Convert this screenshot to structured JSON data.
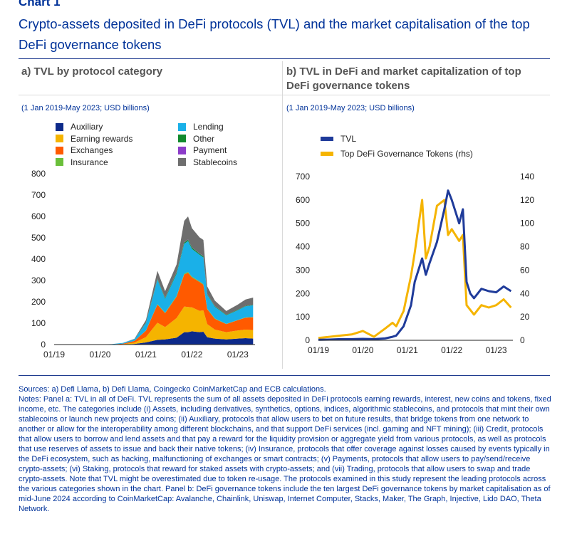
{
  "header": {
    "chart_number": "Chart 1",
    "title": "Crypto-assets deposited in DeFi protocols (TVL) and the market capitalisation of the top DeFi governance tokens"
  },
  "colors": {
    "title_blue": "#003299",
    "auxiliary": "#0d2a8a",
    "earning_rewards": "#f5b400",
    "exchanges": "#ff5a00",
    "insurance": "#6abf3a",
    "lending": "#1ab0e8",
    "other": "#118a2d",
    "payment": "#8c3cc9",
    "stablecoins": "#6e6e6e",
    "tvl_line": "#1f3b9a",
    "gov_tokens_line": "#f5b400"
  },
  "chart_data": [
    {
      "panel_title": "a) TVL by protocol category",
      "subtitle": "(1 Jan 2019-May 2023; USD billions)",
      "type": "area",
      "stacked": true,
      "x": [
        "01/19",
        "04/19",
        "07/19",
        "10/19",
        "01/20",
        "04/20",
        "07/20",
        "10/20",
        "01/21",
        "04/21",
        "06/21",
        "09/21",
        "11/21",
        "12/21",
        "01/22",
        "03/22",
        "04/22",
        "05/22",
        "07/22",
        "10/22",
        "01/23",
        "03/23",
        "05/23"
      ],
      "x_ticks": [
        "01/19",
        "01/20",
        "01/21",
        "01/22",
        "01/23"
      ],
      "ylim": [
        0,
        800
      ],
      "y_ticks": [
        "0",
        "100",
        "200",
        "300",
        "400",
        "500",
        "600",
        "700",
        "800"
      ],
      "series": [
        {
          "name": "Auxiliary",
          "color": "#0d2a8a",
          "values": [
            0,
            0,
            0,
            0,
            0,
            0,
            0,
            3,
            10,
            22,
            24,
            32,
            58,
            58,
            62,
            58,
            60,
            34,
            28,
            24,
            28,
            30,
            28
          ]
        },
        {
          "name": "Earning rewards",
          "color": "#f5b400",
          "values": [
            0,
            0,
            0,
            0,
            0,
            0,
            2,
            6,
            25,
            80,
            58,
            92,
            120,
            118,
            112,
            100,
            100,
            62,
            42,
            34,
            38,
            40,
            40
          ]
        },
        {
          "name": "Exchanges",
          "color": "#ff5a00",
          "values": [
            0,
            0,
            0,
            0,
            0,
            1,
            2,
            8,
            30,
            85,
            65,
            100,
            150,
            160,
            140,
            135,
            120,
            70,
            50,
            38,
            48,
            56,
            60
          ]
        },
        {
          "name": "Insurance",
          "color": "#6abf3a",
          "values": [
            0,
            0,
            0,
            0,
            0,
            0,
            0,
            0,
            1,
            2,
            2,
            3,
            4,
            4,
            4,
            3,
            3,
            2,
            2,
            1,
            1,
            1,
            1
          ]
        },
        {
          "name": "Lending",
          "color": "#1ab0e8",
          "values": [
            0,
            0,
            0,
            0,
            1,
            1,
            4,
            8,
            35,
            115,
            65,
            105,
            140,
            145,
            130,
            125,
            125,
            65,
            55,
            40,
            46,
            52,
            55
          ]
        },
        {
          "name": "Other",
          "color": "#118a2d",
          "values": [
            0,
            0,
            0,
            0,
            0,
            0,
            0,
            0,
            2,
            4,
            4,
            6,
            6,
            6,
            6,
            5,
            5,
            3,
            3,
            2,
            2,
            2,
            2
          ]
        },
        {
          "name": "Payment",
          "color": "#8c3cc9",
          "values": [
            0,
            0,
            0,
            0,
            0,
            0,
            0,
            0,
            0,
            1,
            1,
            1,
            1,
            1,
            1,
            1,
            1,
            1,
            1,
            0,
            0,
            0,
            0
          ]
        },
        {
          "name": "Stablecoins",
          "color": "#6e6e6e",
          "values": [
            0,
            0,
            0,
            0,
            0,
            0,
            0,
            2,
            12,
            36,
            31,
            36,
            100,
            108,
            90,
            75,
            76,
            35,
            25,
            18,
            24,
            30,
            34
          ]
        }
      ]
    },
    {
      "panel_title": "b) TVL in DeFi and market capitalization of top DeFi governance tokens",
      "subtitle": "(1 Jan 2019-May 2023; USD billions)",
      "type": "line",
      "x": [
        "01/19",
        "04/19",
        "07/19",
        "10/19",
        "01/20",
        "04/20",
        "07/20",
        "09/20",
        "10/20",
        "12/20",
        "02/21",
        "03/21",
        "05/21",
        "06/21",
        "07/21",
        "09/21",
        "11/21",
        "12/21",
        "01/22",
        "03/22",
        "04/22",
        "05/22",
        "06/22",
        "07/22",
        "09/22",
        "11/22",
        "01/23",
        "03/23",
        "05/23"
      ],
      "x_ticks": [
        "01/19",
        "01/20",
        "01/21",
        "01/22",
        "01/23"
      ],
      "ylim_left": [
        0,
        700
      ],
      "y_ticks_left": [
        "0",
        "100",
        "200",
        "300",
        "400",
        "500",
        "600",
        "700"
      ],
      "ylim_right": [
        0,
        140
      ],
      "y_ticks_right": [
        "0",
        "20",
        "40",
        "60",
        "80",
        "100",
        "120",
        "140"
      ],
      "series": [
        {
          "name": "TVL",
          "axis": "left",
          "color": "#1f3b9a",
          "values": [
            2,
            3,
            5,
            5,
            6,
            5,
            8,
            15,
            20,
            60,
            150,
            250,
            350,
            280,
            330,
            420,
            560,
            640,
            600,
            500,
            560,
            250,
            200,
            180,
            220,
            210,
            205,
            230,
            210
          ]
        },
        {
          "name": "Top DeFi Governance Tokens (rhs)",
          "axis": "right",
          "color": "#f5b400",
          "values": [
            2,
            3,
            4,
            5,
            8,
            3,
            10,
            15,
            12,
            25,
            55,
            75,
            120,
            70,
            80,
            115,
            120,
            90,
            95,
            85,
            90,
            30,
            26,
            22,
            30,
            28,
            30,
            35,
            28
          ]
        }
      ]
    }
  ],
  "legend_a": {
    "items": [
      "Auxiliary",
      "Earning rewards",
      "Exchanges",
      "Insurance",
      "Lending",
      "Other",
      "Payment",
      "Stablecoins"
    ]
  },
  "legend_b": {
    "items": [
      "TVL",
      "Top DeFi Governance Tokens (rhs)"
    ]
  },
  "footer": {
    "sources": "Sources: a) Defi Llama, b) Defi Llama, Coingecko CoinMarketCap and ECB calculations.",
    "notes": "Notes: Panel a: TVL in all of DeFi. TVL represents the sum of all assets deposited in DeFi protocols earning rewards, interest, new coins and tokens, fixed income, etc. The categories include (i) Assets, including derivatives, synthetics, options, indices, algorithmic stablecoins, and protocols that mint their own stablecoins or launch new projects and coins; (ii) Auxiliary, protocols that allow users to bet on future results, that bridge tokens from one network to another or allow for the interoperability among different blockchains, and that support DeFi services (incl. gaming and NFT mining); (iii) Credit, protocols that allow users to borrow and lend assets and that pay a reward for the liquidity provision or aggregate yield from various protocols, as well as protocols that use reserves of assets to issue and back their native tokens; (iv) Insurance, protocols that offer coverage against losses caused by events typically in the DeFi ecosystem, such as hacking, malfunctioning of exchanges or smart contracts; (v) Payments, protocols that allow users to pay/send/receive crypto-assets; (vi) Staking, protocols that reward for staked assets with crypto-assets; and (vii) Trading, protocols that allow users to swap and trade crypto-assets. Note that TVL might be overestimated due to token re-usage. The protocols examined in this study represent the leading protocols across the various categories shown in the chart. Panel b: DeFi governance tokens include the ten largest DeFi governance tokens by market capitalisation as of mid-June 2024 according to CoinMarketCap: Avalanche, Chainlink, Uniswap, Internet Computer, Stacks, Maker, The Graph, Injective, Lido DAO, Theta Network."
  }
}
